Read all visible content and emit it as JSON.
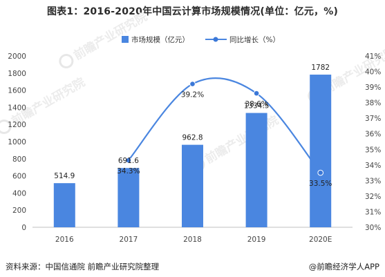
{
  "title": "图表1：2016-2020年中国云计算市场规模情况(单位：亿元，%)",
  "source": "资料来源：中国信通院 前瞻产业研究院整理",
  "credit": "@前瞻经济学人APP",
  "watermark": "前瞻产业研究院",
  "chart_data": {
    "type": "bar",
    "categories": [
      "2016",
      "2017",
      "2018",
      "2019",
      "2020E"
    ],
    "series": [
      {
        "name": "市场规模（亿元）",
        "type": "bar",
        "axis": "left",
        "values": [
          514.9,
          691.6,
          962.8,
          1334.5,
          1782
        ],
        "labels": [
          "514.9",
          "691.6",
          "962.8",
          "1334.5",
          "1782"
        ]
      },
      {
        "name": "同比增长（%）",
        "type": "line",
        "axis": "right",
        "x": [
          "2017",
          "2018",
          "2019",
          "2020E"
        ],
        "values": [
          34.3,
          39.2,
          38.6,
          33.5
        ],
        "labels": [
          "34.3%",
          "39.2%",
          "38.6%",
          "33.5%"
        ]
      }
    ],
    "yleft": {
      "lim": [
        0,
        2000
      ],
      "ticks": [
        "0",
        "200",
        "400",
        "600",
        "800",
        "1000",
        "1200",
        "1400",
        "1600",
        "1800",
        "2000"
      ]
    },
    "yright": {
      "lim": [
        30,
        41
      ],
      "ticks": [
        "30%",
        "31%",
        "32%",
        "33%",
        "34%",
        "35%",
        "36%",
        "37%",
        "38%",
        "39%",
        "40%",
        "41%"
      ]
    },
    "legend_position": "top",
    "grid": false,
    "colors": {
      "bar": "#4a86e0",
      "line": "#4a86e0",
      "point": "#3b78d8"
    }
  }
}
